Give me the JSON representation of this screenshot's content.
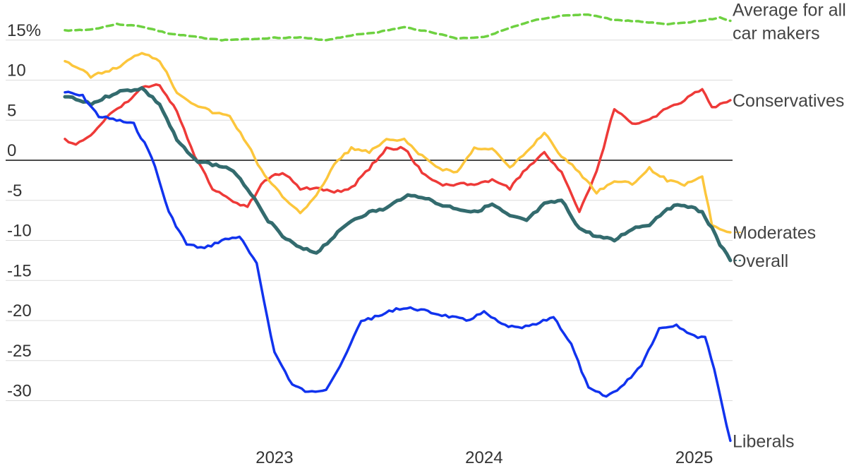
{
  "chart_data": {
    "type": "line",
    "ylim": [
      -38,
      17.5
    ],
    "y_ticks": [
      {
        "value": 15,
        "label": "15%"
      },
      {
        "value": 10,
        "label": "10"
      },
      {
        "value": 5,
        "label": "5"
      },
      {
        "value": 0,
        "label": "0"
      },
      {
        "value": -5,
        "label": "-5"
      },
      {
        "value": -10,
        "label": "-10"
      },
      {
        "value": -15,
        "label": "-15"
      },
      {
        "value": -20,
        "label": "-20"
      },
      {
        "value": -25,
        "label": "-25"
      },
      {
        "value": -30,
        "label": "-30"
      }
    ],
    "xlim": [
      "2022-01-01",
      "2025-03-15"
    ],
    "x_ticks": [
      {
        "value": "2023-01-01",
        "label": "2023"
      },
      {
        "value": "2024-01-01",
        "label": "2024"
      },
      {
        "value": "2025-01-01",
        "label": "2025"
      }
    ],
    "grid": true,
    "zero_line": true,
    "series": [
      {
        "name": "Average for all car makers",
        "label_lines": [
          "Average for all",
          "car makers"
        ],
        "color": "#6ed141",
        "dashed": true,
        "x": [
          "2022-01-01",
          "2022-02-15",
          "2022-04-01",
          "2022-05-15",
          "2022-07-01",
          "2022-08-15",
          "2022-10-01",
          "2022-11-15",
          "2023-01-01",
          "2023-02-15",
          "2023-04-01",
          "2023-05-15",
          "2023-07-01",
          "2023-08-15",
          "2023-10-01",
          "2023-11-15",
          "2024-01-01",
          "2024-02-15",
          "2024-04-01",
          "2024-05-15",
          "2024-07-01",
          "2024-08-15",
          "2024-10-01",
          "2024-11-15",
          "2025-01-01",
          "2025-02-15",
          "2025-03-05"
        ],
        "values": [
          16.2,
          16.3,
          17,
          16.7,
          15.8,
          15.4,
          15.0,
          15.1,
          15.3,
          15.3,
          15.0,
          15.6,
          16.0,
          16.6,
          16.0,
          15.2,
          15.4,
          16.5,
          17.5,
          18.0,
          18.2,
          17.5,
          17.3,
          17.0,
          17.3,
          17.8,
          17.4
        ]
      },
      {
        "name": "Conservatives",
        "color": "#ee3a38",
        "dashed": false,
        "x": [
          "2022-01-01",
          "2022-01-20",
          "2022-02-15",
          "2022-03-15",
          "2022-04-15",
          "2022-05-15",
          "2022-06-15",
          "2022-07-15",
          "2022-08-15",
          "2022-09-15",
          "2022-10-15",
          "2022-11-15",
          "2022-12-15",
          "2023-01-15",
          "2023-02-15",
          "2023-03-15",
          "2023-04-15",
          "2023-05-15",
          "2023-06-15",
          "2023-07-15",
          "2023-08-15",
          "2023-09-15",
          "2023-10-15",
          "2023-11-15",
          "2023-12-15",
          "2024-01-15",
          "2024-02-15",
          "2024-03-15",
          "2024-04-15",
          "2024-05-15",
          "2024-06-15",
          "2024-07-15",
          "2024-08-15",
          "2024-09-15",
          "2024-10-15",
          "2024-11-15",
          "2024-12-15",
          "2025-01-15",
          "2025-02-01",
          "2025-02-15",
          "2025-03-05"
        ],
        "values": [
          2.5,
          2.0,
          3.0,
          5.5,
          7.0,
          9.0,
          9.5,
          6.0,
          0.5,
          -3.5,
          -5.0,
          -5.8,
          -2.5,
          -1.5,
          -3.5,
          -3.5,
          -4.0,
          -3.5,
          -1.0,
          1.5,
          1.5,
          -1.5,
          -3.0,
          -3.0,
          -3.0,
          -2.5,
          -3.5,
          -1.0,
          1.0,
          -1.5,
          -6.5,
          -1.5,
          6.5,
          4.5,
          5.0,
          6.5,
          7.5,
          9.0,
          6.5,
          7.0,
          7.5
        ]
      },
      {
        "name": "Moderates",
        "color": "#fcc63c",
        "dashed": false,
        "x": [
          "2022-01-01",
          "2022-02-15",
          "2022-04-01",
          "2022-05-15",
          "2022-06-15",
          "2022-07-15",
          "2022-08-15",
          "2022-09-15",
          "2022-10-15",
          "2022-11-15",
          "2022-12-15",
          "2023-01-15",
          "2023-02-15",
          "2023-03-15",
          "2023-04-15",
          "2023-05-15",
          "2023-06-15",
          "2023-07-15",
          "2023-08-15",
          "2023-09-15",
          "2023-10-15",
          "2023-11-15",
          "2023-12-15",
          "2024-01-15",
          "2024-02-15",
          "2024-03-15",
          "2024-04-15",
          "2024-05-15",
          "2024-06-15",
          "2024-07-15",
          "2024-08-15",
          "2024-09-15",
          "2024-10-15",
          "2024-11-15",
          "2024-12-15",
          "2025-01-15",
          "2025-02-01",
          "2025-02-15",
          "2025-03-05"
        ],
        "values": [
          12.5,
          10.5,
          11.5,
          13.5,
          12.5,
          8.5,
          7.0,
          6.0,
          5.5,
          2.0,
          -2.0,
          -4.5,
          -6.5,
          -4.5,
          -0.5,
          1.5,
          1.0,
          2.5,
          2.5,
          0.5,
          -1.0,
          -1.5,
          1.5,
          1.5,
          -1.0,
          1.0,
          3.5,
          0.5,
          -1.5,
          -4.0,
          -2.5,
          -3.0,
          -1.0,
          -2.5,
          -3.0,
          -2.0,
          -8.0,
          -8.5,
          -9.0
        ]
      },
      {
        "name": "Overall",
        "color": "#336b6e",
        "dashed": false,
        "x": [
          "2022-01-01",
          "2022-02-15",
          "2022-04-01",
          "2022-05-15",
          "2022-06-15",
          "2022-07-15",
          "2022-08-15",
          "2022-09-15",
          "2022-10-15",
          "2022-11-15",
          "2022-12-15",
          "2023-01-15",
          "2023-02-15",
          "2023-03-15",
          "2023-04-15",
          "2023-05-15",
          "2023-06-15",
          "2023-07-15",
          "2023-08-15",
          "2023-09-15",
          "2023-10-15",
          "2023-11-15",
          "2023-12-15",
          "2024-01-15",
          "2024-02-15",
          "2024-03-15",
          "2024-04-15",
          "2024-05-15",
          "2024-06-15",
          "2024-07-15",
          "2024-08-15",
          "2024-09-15",
          "2024-10-15",
          "2024-11-15",
          "2024-12-15",
          "2025-01-15",
          "2025-02-01",
          "2025-02-15",
          "2025-03-05"
        ],
        "values": [
          8.0,
          7.0,
          8.5,
          9.0,
          7.0,
          2.5,
          0,
          -0.5,
          -1.0,
          -3.5,
          -7.0,
          -9.5,
          -11.0,
          -11.5,
          -9.5,
          -7.5,
          -6.5,
          -6.0,
          -4.5,
          -4.5,
          -5.5,
          -6.0,
          -6.5,
          -5.5,
          -7.0,
          -7.5,
          -5.5,
          -5.0,
          -8.5,
          -9.5,
          -10.0,
          -8.5,
          -8.0,
          -6.0,
          -5.5,
          -6.5,
          -8.5,
          -10.5,
          -12.5
        ]
      },
      {
        "name": "Liberals",
        "color": "#1133ee",
        "dashed": false,
        "x": [
          "2022-01-01",
          "2022-02-01",
          "2022-03-01",
          "2022-04-01",
          "2022-05-01",
          "2022-06-01",
          "2022-07-01",
          "2022-08-01",
          "2022-09-01",
          "2022-10-01",
          "2022-11-01",
          "2022-12-01",
          "2023-01-01",
          "2023-02-01",
          "2023-03-01",
          "2023-04-01",
          "2023-05-01",
          "2023-06-01",
          "2023-07-01",
          "2023-08-01",
          "2023-09-01",
          "2023-10-01",
          "2023-11-01",
          "2023-12-01",
          "2024-01-01",
          "2024-02-01",
          "2024-03-01",
          "2024-04-01",
          "2024-05-01",
          "2024-06-01",
          "2024-07-01",
          "2024-08-01",
          "2024-09-01",
          "2024-10-01",
          "2024-11-01",
          "2024-12-01",
          "2025-01-01",
          "2025-01-20",
          "2025-02-05",
          "2025-02-20",
          "2025-03-05"
        ],
        "values": [
          8.5,
          8.0,
          5.5,
          5.0,
          4.5,
          0.5,
          -6.5,
          -10.5,
          -11.0,
          -10.0,
          -9.5,
          -13.0,
          -24.0,
          -28.0,
          -29.0,
          -28.5,
          -25.0,
          -20.0,
          -19.5,
          -18.5,
          -18.5,
          -19.0,
          -19.5,
          -20.0,
          -19.0,
          -20.5,
          -21.0,
          -20.5,
          -19.5,
          -23.0,
          -28.5,
          -29.5,
          -28.0,
          -25.5,
          -21.0,
          -20.5,
          -22.0,
          -22.0,
          -26.0,
          -31.0,
          -35.0
        ]
      }
    ]
  }
}
